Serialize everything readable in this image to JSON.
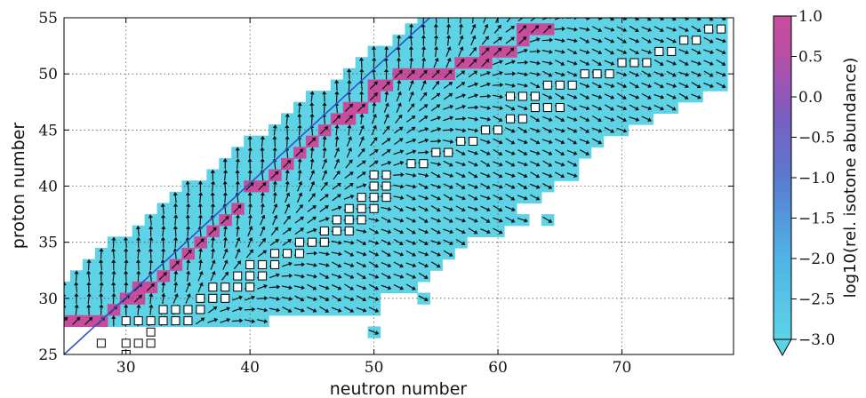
{
  "chart_data": {
    "type": "heatmap",
    "xlabel": "neutron number",
    "ylabel": "proton number",
    "xlim": [
      25,
      79
    ],
    "ylim": [
      25,
      55
    ],
    "x_ticks": [
      "30",
      "40",
      "50",
      "60",
      "70"
    ],
    "x_tick_values": [
      30,
      40,
      50,
      60,
      70
    ],
    "y_ticks": [
      "25",
      "30",
      "35",
      "40",
      "45",
      "50",
      "55"
    ],
    "y_tick_values": [
      25,
      30,
      35,
      40,
      45,
      50,
      55
    ],
    "grid": true,
    "colorbar": {
      "label": "log10(rel. isotone abundance)",
      "range": [
        -3.0,
        1.0
      ],
      "ticks": [
        "1.0",
        "0.5",
        "0.0",
        "−0.5",
        "−1.0",
        "−1.5",
        "−2.0",
        "−2.5",
        "−3.0"
      ],
      "tick_values": [
        1.0,
        0.5,
        0.0,
        -0.5,
        -1.0,
        -1.5,
        -2.0,
        -2.5,
        -3.0
      ],
      "colors": [
        "#5ed3e6",
        "#4fb4e6",
        "#5a7ad0",
        "#7d5cbf",
        "#b84fa6",
        "#c84c9c"
      ]
    },
    "background_color": "#5ed3e6",
    "peak_color": "#c84c9c",
    "diagonal_color": "#3050c8",
    "diagonal_line": {
      "x": [
        25,
        54.5
      ],
      "y": [
        25,
        55
      ]
    },
    "region_rows": [
      {
        "z": 28,
        "n_min": 25,
        "n_max": 41
      },
      {
        "z": 29,
        "n_min": 25,
        "n_max": 50
      },
      {
        "z": 30,
        "n_min": 25,
        "n_max": 50
      },
      {
        "z": 31,
        "n_min": 25,
        "n_max": 53
      },
      {
        "z": 32,
        "n_min": 26,
        "n_max": 54
      },
      {
        "z": 33,
        "n_min": 27,
        "n_max": 55
      },
      {
        "z": 34,
        "n_min": 28,
        "n_max": 56
      },
      {
        "z": 35,
        "n_min": 29,
        "n_max": 57
      },
      {
        "z": 36,
        "n_min": 31,
        "n_max": 60
      },
      {
        "z": 37,
        "n_min": 32,
        "n_max": 61
      },
      {
        "z": 38,
        "n_min": 33,
        "n_max": 61
      },
      {
        "z": 39,
        "n_min": 34,
        "n_max": 63
      },
      {
        "z": 40,
        "n_min": 35,
        "n_max": 64
      },
      {
        "z": 41,
        "n_min": 37,
        "n_max": 66
      },
      {
        "z": 42,
        "n_min": 38,
        "n_max": 66
      },
      {
        "z": 43,
        "n_min": 39,
        "n_max": 67
      },
      {
        "z": 44,
        "n_min": 40,
        "n_max": 68
      },
      {
        "z": 45,
        "n_min": 42,
        "n_max": 70
      },
      {
        "z": 46,
        "n_min": 43,
        "n_max": 72
      },
      {
        "z": 47,
        "n_min": 44,
        "n_max": 74
      },
      {
        "z": 48,
        "n_min": 45,
        "n_max": 76
      },
      {
        "z": 49,
        "n_min": 47,
        "n_max": 78
      },
      {
        "z": 50,
        "n_min": 48,
        "n_max": 78
      },
      {
        "z": 51,
        "n_min": 49,
        "n_max": 78
      },
      {
        "z": 52,
        "n_min": 50,
        "n_max": 78
      },
      {
        "z": 53,
        "n_min": 52,
        "n_max": 78
      },
      {
        "z": 54,
        "n_min": 53,
        "n_max": 78
      },
      {
        "z": 55,
        "n_min": 54,
        "n_max": 78
      }
    ],
    "extra_cells": [
      [
        50,
        27
      ],
      [
        54,
        30
      ],
      [
        52,
        31
      ],
      [
        62,
        37
      ],
      [
        64,
        37
      ]
    ],
    "peak_cells": [
      [
        25,
        28
      ],
      [
        26,
        28
      ],
      [
        27,
        28
      ],
      [
        28,
        28
      ],
      [
        29,
        29
      ],
      [
        30,
        30
      ],
      [
        31,
        30
      ],
      [
        31,
        31
      ],
      [
        32,
        31
      ],
      [
        33,
        32
      ],
      [
        34,
        33
      ],
      [
        35,
        34
      ],
      [
        36,
        35
      ],
      [
        37,
        36
      ],
      [
        38,
        37
      ],
      [
        39,
        38
      ],
      [
        40,
        40
      ],
      [
        41,
        40
      ],
      [
        42,
        41
      ],
      [
        43,
        42
      ],
      [
        44,
        43
      ],
      [
        45,
        44
      ],
      [
        46,
        45
      ],
      [
        47,
        46
      ],
      [
        48,
        46
      ],
      [
        48,
        47
      ],
      [
        49,
        47
      ],
      [
        50,
        48
      ],
      [
        50,
        49
      ],
      [
        51,
        49
      ],
      [
        52,
        50
      ],
      [
        53,
        50
      ],
      [
        54,
        50
      ],
      [
        55,
        50
      ],
      [
        56,
        50
      ],
      [
        57,
        51
      ],
      [
        58,
        51
      ],
      [
        59,
        51
      ],
      [
        59,
        52
      ],
      [
        60,
        52
      ],
      [
        61,
        52
      ],
      [
        62,
        53
      ],
      [
        62,
        54
      ],
      [
        63,
        54
      ],
      [
        64,
        54
      ]
    ],
    "boxed_cells": [
      [
        30,
        28
      ],
      [
        31,
        28
      ],
      [
        32,
        28
      ],
      [
        33,
        28
      ],
      [
        34,
        28
      ],
      [
        35,
        28
      ],
      [
        33,
        29
      ],
      [
        34,
        29
      ],
      [
        35,
        29
      ],
      [
        36,
        29
      ],
      [
        36,
        30
      ],
      [
        37,
        30
      ],
      [
        38,
        30
      ],
      [
        37,
        31
      ],
      [
        38,
        31
      ],
      [
        39,
        31
      ],
      [
        40,
        31
      ],
      [
        39,
        32
      ],
      [
        40,
        32
      ],
      [
        41,
        32
      ],
      [
        40,
        33
      ],
      [
        41,
        33
      ],
      [
        42,
        33
      ],
      [
        42,
        34
      ],
      [
        43,
        34
      ],
      [
        44,
        34
      ],
      [
        44,
        35
      ],
      [
        45,
        35
      ],
      [
        46,
        35
      ],
      [
        46,
        36
      ],
      [
        47,
        36
      ],
      [
        48,
        36
      ],
      [
        47,
        37
      ],
      [
        48,
        37
      ],
      [
        49,
        37
      ],
      [
        48,
        38
      ],
      [
        49,
        38
      ],
      [
        50,
        38
      ],
      [
        49,
        39
      ],
      [
        50,
        39
      ],
      [
        51,
        39
      ],
      [
        50,
        40
      ],
      [
        51,
        40
      ],
      [
        50,
        41
      ],
      [
        51,
        41
      ],
      [
        53,
        42
      ],
      [
        54,
        42
      ],
      [
        55,
        43
      ],
      [
        56,
        43
      ],
      [
        57,
        44
      ],
      [
        58,
        44
      ],
      [
        59,
        45
      ],
      [
        60,
        45
      ],
      [
        61,
        46
      ],
      [
        62,
        46
      ],
      [
        63,
        47
      ],
      [
        64,
        47
      ],
      [
        65,
        47
      ],
      [
        61,
        48
      ],
      [
        62,
        48
      ],
      [
        63,
        48
      ],
      [
        64,
        49
      ],
      [
        65,
        49
      ],
      [
        66,
        49
      ],
      [
        67,
        50
      ],
      [
        68,
        50
      ],
      [
        69,
        50
      ],
      [
        70,
        51
      ],
      [
        71,
        51
      ],
      [
        72,
        51
      ],
      [
        73,
        52
      ],
      [
        74,
        52
      ],
      [
        75,
        53
      ],
      [
        76,
        53
      ],
      [
        77,
        54
      ],
      [
        78,
        54
      ]
    ],
    "outside_boxes": [
      [
        28,
        26
      ],
      [
        30,
        26
      ],
      [
        31,
        26
      ],
      [
        32,
        26
      ],
      [
        32,
        27
      ],
      [
        30,
        25
      ]
    ]
  }
}
